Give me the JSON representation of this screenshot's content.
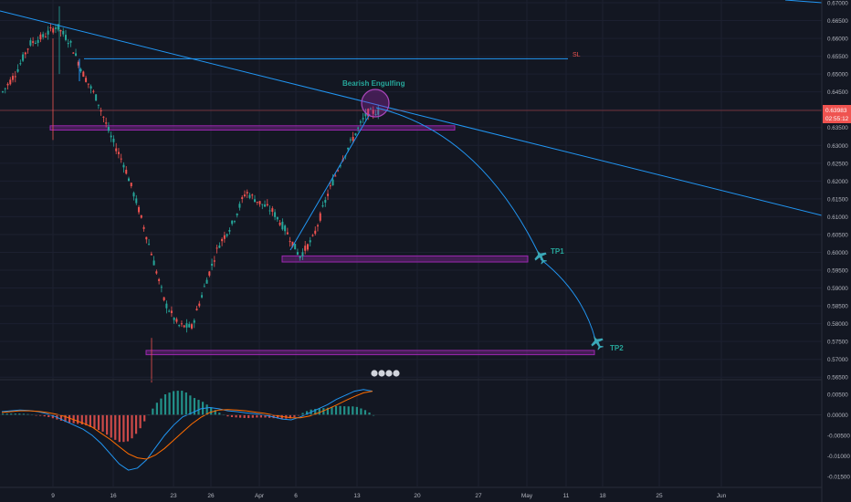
{
  "chart_data": {
    "type": "candlestick",
    "x_ticks": [
      "9",
      "16",
      "23",
      "26",
      "Apr",
      "6",
      "13",
      "20",
      "27",
      "May",
      "11",
      "18",
      "25",
      "Jun"
    ],
    "price_axis": {
      "ylim": [
        0.5625,
        0.67
      ],
      "ticks": [
        "0.67000",
        "0.66500",
        "0.66000",
        "0.65500",
        "0.65000",
        "0.64500",
        "0.64000",
        "0.63500",
        "0.63000",
        "0.62500",
        "0.62000",
        "0.61500",
        "0.61000",
        "0.60500",
        "0.60000",
        "0.59500",
        "0.59000",
        "0.58500",
        "0.58000",
        "0.57500",
        "0.57000",
        "0.56500"
      ],
      "tick_values": [
        0.67,
        0.665,
        0.66,
        0.655,
        0.65,
        0.645,
        0.64,
        0.635,
        0.63,
        0.625,
        0.62,
        0.615,
        0.61,
        0.605,
        0.6,
        0.595,
        0.59,
        0.585,
        0.58,
        0.575,
        0.57,
        0.565
      ]
    },
    "current_price": {
      "label": "0.63983",
      "countdown": "02:55:12",
      "value": 0.6398,
      "color": "#ef5350"
    },
    "macd_axis": {
      "ylim": [
        -0.0175,
        0.0075
      ],
      "ticks": [
        "0.00500",
        "0.00000",
        "-0.00500",
        "-0.01000",
        "-0.01500"
      ],
      "tick_values": [
        0.005,
        0.0,
        -0.005,
        -0.01,
        -0.015
      ]
    },
    "annotations": {
      "stop_loss": {
        "label": "SL",
        "price": 0.6543
      },
      "pattern": {
        "label": "Bearish Engulfing"
      },
      "tp1": {
        "label": "TP1",
        "price": 0.5975
      },
      "tp2": {
        "label": "TP2",
        "price": 0.5715
      }
    },
    "zones": [
      {
        "name": "resistance",
        "price_top": 0.6355,
        "price_bottom": 0.6343
      },
      {
        "name": "tp1-support",
        "price_top": 0.599,
        "price_bottom": 0.5973
      },
      {
        "name": "tp2-support",
        "price_top": 0.5725,
        "price_bottom": 0.5713
      }
    ],
    "price_path": [
      [
        0.645,
        0.6505
      ],
      [
        0.6505,
        0.6585
      ],
      [
        0.6585,
        0.6605
      ],
      [
        0.6605,
        0.6635
      ],
      [
        0.6635,
        0.6588
      ],
      [
        0.6588,
        0.6498
      ],
      [
        0.6498,
        0.6428
      ],
      [
        0.6428,
        0.6325
      ],
      [
        0.6325,
        0.6245
      ],
      [
        0.6245,
        0.613
      ],
      [
        0.613,
        0.6
      ],
      [
        0.6,
        0.586
      ],
      [
        0.586,
        0.5795
      ],
      [
        0.5795,
        0.579
      ],
      [
        0.579,
        0.591
      ],
      [
        0.591,
        0.602
      ],
      [
        0.602,
        0.608
      ],
      [
        0.608,
        0.617
      ],
      [
        0.617,
        0.614
      ],
      [
        0.614,
        0.6115
      ],
      [
        0.6115,
        0.606
      ],
      [
        0.606,
        0.5988
      ],
      [
        0.5988,
        0.604
      ],
      [
        0.604,
        0.6155
      ],
      [
        0.6155,
        0.625
      ],
      [
        0.625,
        0.6325
      ],
      [
        0.6325,
        0.6392
      ],
      [
        0.6392,
        0.6395
      ]
    ],
    "colors": {
      "up": "#26a69a",
      "down": "#ef5350",
      "zone": "#9c27b0",
      "line": "#2196f3",
      "text": "#26a69a",
      "sl": "#ef5350"
    }
  }
}
